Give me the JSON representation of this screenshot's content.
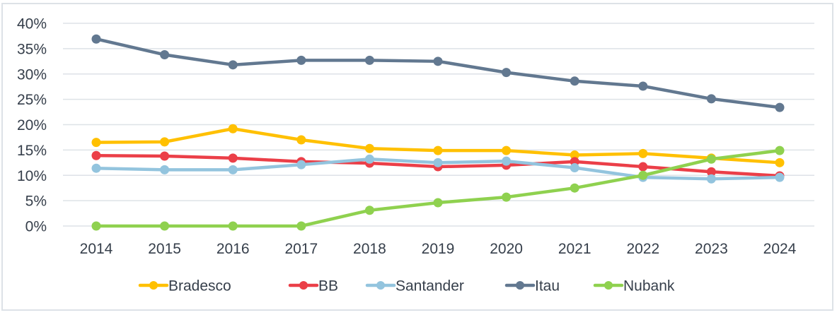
{
  "chart_data": {
    "type": "line",
    "title": "",
    "xlabel": "",
    "ylabel": "",
    "x": [
      "2014",
      "2015",
      "2016",
      "2017",
      "2018",
      "2019",
      "2020",
      "2021",
      "2022",
      "2023",
      "2024"
    ],
    "ylim": [
      0,
      40
    ],
    "y_ticks": [
      0,
      5,
      10,
      15,
      20,
      25,
      30,
      35,
      40
    ],
    "y_tick_labels": [
      "0%",
      "5%",
      "10%",
      "15%",
      "20%",
      "25%",
      "30%",
      "35%",
      "40%"
    ],
    "grid": true,
    "legend_position": "bottom",
    "series": [
      {
        "name": "Bradesco",
        "color": "#ffc000",
        "values": [
          16.5,
          16.6,
          19.2,
          17.0,
          15.3,
          14.9,
          14.9,
          14.0,
          14.3,
          13.4,
          12.5
        ]
      },
      {
        "name": "BB",
        "color": "#eb3f48",
        "values": [
          13.9,
          13.8,
          13.4,
          12.7,
          12.4,
          11.7,
          12.0,
          12.7,
          11.7,
          10.7,
          9.9
        ]
      },
      {
        "name": "Santander",
        "color": "#93c4de",
        "values": [
          11.4,
          11.1,
          11.1,
          12.1,
          13.2,
          12.5,
          12.8,
          11.5,
          9.6,
          9.3,
          9.6
        ]
      },
      {
        "name": "Itau",
        "color": "#627890",
        "values": [
          36.9,
          33.8,
          31.8,
          32.7,
          32.7,
          32.5,
          30.3,
          28.6,
          27.6,
          25.1,
          23.4
        ]
      },
      {
        "name": "Nubank",
        "color": "#8fd14f",
        "values": [
          0,
          0,
          0,
          0,
          3.1,
          4.6,
          5.7,
          7.5,
          10.0,
          13.2,
          14.9
        ]
      }
    ]
  }
}
